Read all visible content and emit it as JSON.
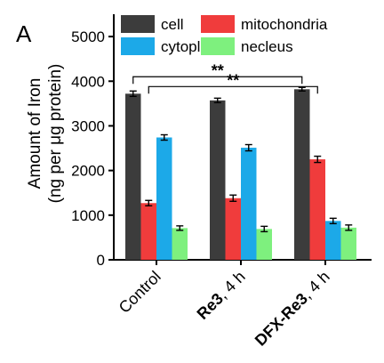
{
  "panel_label": "A",
  "chart_data": {
    "type": "bar",
    "ylabel_line1": "Amount of Iron",
    "ylabel_line2": "(ng per μg protein)",
    "xlabel": "",
    "ylim": [
      0,
      5500
    ],
    "yticks": [
      0,
      1000,
      2000,
      3000,
      4000,
      5000
    ],
    "grid": false,
    "legend_position": "top",
    "categories": [
      {
        "bold": "",
        "rest": "Control"
      },
      {
        "bold": "Re3",
        "rest": ", 4 h"
      },
      {
        "bold": "DFX-Re3",
        "rest": ", 4 h"
      }
    ],
    "series": [
      {
        "name": "cell",
        "color": "#3c3c3c",
        "values": [
          3720,
          3570,
          3820
        ],
        "errors": [
          60,
          50,
          40
        ]
      },
      {
        "name": "mitochondria",
        "color": "#f03c3c",
        "values": [
          1270,
          1380,
          2250
        ],
        "errors": [
          60,
          70,
          70
        ]
      },
      {
        "name": "cytoplasm",
        "color": "#1ca9e8",
        "values": [
          2740,
          2510,
          870
        ],
        "errors": [
          60,
          70,
          60
        ]
      },
      {
        "name": "necleus",
        "color": "#7ef07e",
        "values": [
          710,
          690,
          720
        ],
        "errors": [
          50,
          60,
          60
        ]
      }
    ],
    "annotations": [
      {
        "text": "**",
        "from_category": 0,
        "to_category": 2,
        "series_index": 0,
        "y": 4100
      },
      {
        "text": "**",
        "from_category": 0,
        "to_category": 2,
        "series_index": 1,
        "y": 3880
      }
    ]
  }
}
